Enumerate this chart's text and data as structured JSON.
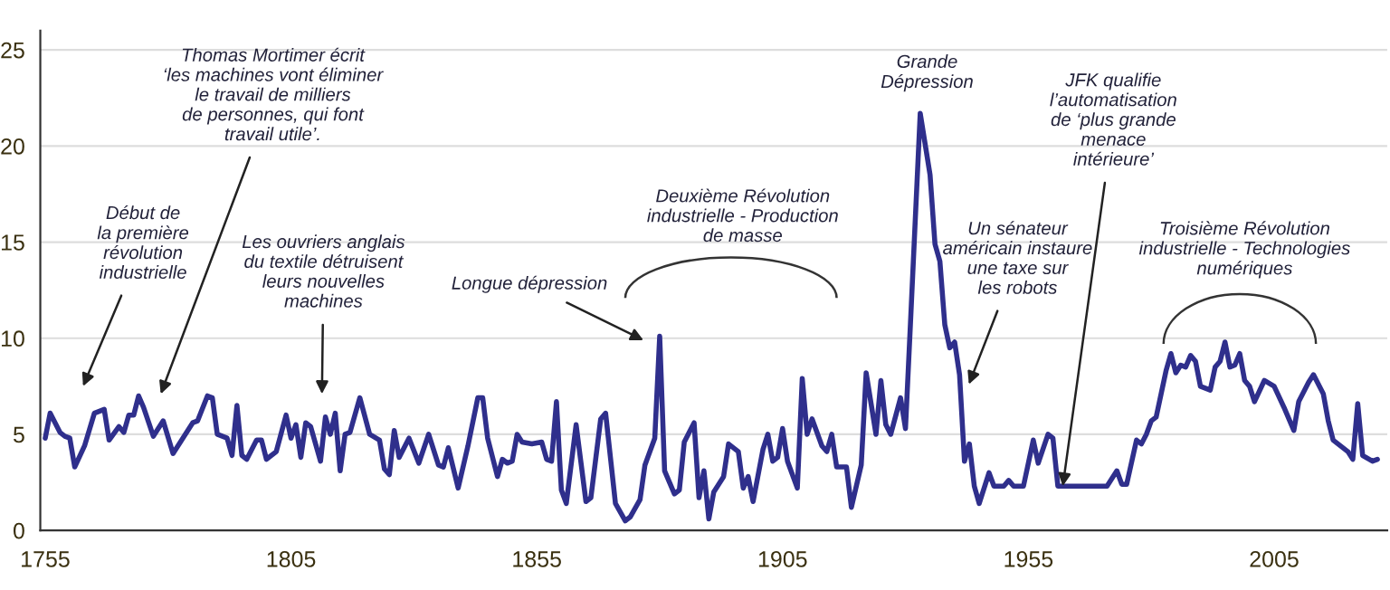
{
  "chart_data": {
    "type": "line",
    "x": [
      1755,
      1756,
      1758,
      1759,
      1760,
      1761,
      1763,
      1765,
      1767,
      1768,
      1770,
      1771,
      1772,
      1773,
      1774,
      1775,
      1777,
      1779,
      1781,
      1783,
      1785,
      1786,
      1788,
      1789,
      1790,
      1792,
      1793,
      1794,
      1795,
      1796,
      1798,
      1799,
      1800,
      1802,
      1804,
      1805,
      1806,
      1807,
      1808,
      1809,
      1811,
      1812,
      1813,
      1814,
      1815,
      1816,
      1817,
      1819,
      1821,
      1823,
      1824,
      1825,
      1826,
      1827,
      1829,
      1831,
      1833,
      1835,
      1836,
      1837,
      1839,
      1841,
      1843,
      1844,
      1845,
      1847,
      1848,
      1849,
      1850,
      1851,
      1852,
      1854,
      1856,
      1857,
      1858,
      1859,
      1860,
      1861,
      1863,
      1865,
      1866,
      1868,
      1869,
      1871,
      1873,
      1874,
      1876,
      1877,
      1879,
      1880,
      1881,
      1883,
      1884,
      1885,
      1887,
      1888,
      1889,
      1890,
      1891,
      1893,
      1894,
      1896,
      1897,
      1898,
      1899,
      1901,
      1902,
      1903,
      1904,
      1905,
      1906,
      1908,
      1909,
      1910,
      1911,
      1913,
      1914,
      1915,
      1916,
      1918,
      1919,
      1921,
      1922,
      1924,
      1925,
      1926,
      1927,
      1929,
      1930,
      1931,
      1933,
      1935,
      1936,
      1937,
      1938,
      1939,
      1940,
      1941,
      1942,
      1943,
      1944,
      1945,
      1947,
      1948,
      1950,
      1951,
      1952,
      1954,
      1956,
      1957,
      1959,
      1960,
      1961,
      1971,
      1973,
      1974,
      1975,
      1977,
      1978,
      1979,
      1980,
      1981,
      1983,
      1984,
      1985,
      1986,
      1987,
      1988,
      1989,
      1990,
      1992,
      1993,
      1994,
      1995,
      1996,
      1997,
      1998,
      1999,
      2000,
      2001,
      2003,
      2005,
      2007,
      2009,
      2010,
      2012,
      2013,
      2015,
      2016,
      2017,
      2020,
      2021,
      2022,
      2023,
      2025,
      2026
    ],
    "series": [
      {
        "color": "#2f2f8c",
        "values": [
          4.8,
          6.1,
          5.1,
          4.9,
          4.8,
          3.3,
          4.4,
          6.1,
          6.3,
          4.7,
          5.4,
          5.1,
          6.0,
          6.0,
          7.0,
          6.4,
          4.9,
          5.7,
          4.0,
          4.8,
          5.6,
          5.7,
          7.0,
          6.9,
          5.0,
          4.8,
          3.9,
          6.5,
          3.9,
          3.7,
          4.7,
          4.7,
          3.7,
          4.1,
          6.0,
          4.8,
          5.5,
          3.8,
          5.6,
          5.4,
          3.6,
          5.9,
          5.0,
          6.1,
          3.1,
          5.0,
          5.1,
          6.9,
          5.0,
          4.7,
          3.2,
          2.9,
          5.2,
          3.8,
          4.8,
          3.5,
          5.0,
          3.4,
          3.3,
          4.3,
          2.2,
          4.4,
          6.9,
          6.9,
          4.8,
          2.8,
          3.7,
          3.5,
          3.6,
          5.0,
          4.6,
          4.5,
          4.6,
          3.7,
          3.6,
          6.7,
          2.1,
          1.4,
          5.5,
          1.5,
          1.7,
          5.8,
          6.1,
          1.4,
          0.5,
          0.7,
          1.6,
          3.4,
          4.8,
          10.1,
          3.1,
          1.9,
          2.1,
          4.6,
          5.6,
          1.7,
          3.1,
          0.6,
          2.0,
          2.8,
          4.5,
          4.1,
          2.2,
          2.8,
          1.5,
          4.2,
          5.0,
          3.6,
          3.8,
          5.3,
          3.6,
          2.2,
          7.9,
          5.0,
          5.8,
          4.4,
          4.1,
          5.0,
          3.3,
          3.3,
          1.2,
          3.4,
          8.2,
          5.0,
          7.8,
          5.5,
          5.0,
          6.9,
          5.3,
          10.7,
          21.7,
          18.5,
          14.9,
          14.0,
          10.7,
          9.5,
          9.8,
          8.1,
          3.6,
          4.5,
          2.3,
          1.4,
          3.0,
          2.3,
          2.3,
          2.6,
          2.3,
          2.3,
          4.7,
          3.5,
          5.0,
          4.8,
          2.3,
          2.3,
          3.1,
          2.4,
          2.4,
          4.7,
          4.5,
          5.0,
          5.7,
          5.9,
          8.3,
          9.2,
          8.2,
          8.6,
          8.5,
          9.1,
          8.8,
          7.5,
          7.3,
          8.5,
          8.8,
          9.8,
          8.5,
          8.6,
          9.2,
          7.8,
          7.5,
          6.7,
          7.8,
          7.5,
          6.4,
          5.2,
          6.7,
          7.7,
          8.1,
          7.1,
          5.7,
          4.7,
          4.1,
          3.7,
          6.6,
          3.9,
          3.6,
          3.7
        ]
      }
    ],
    "xlim": [
      1754,
      2028
    ],
    "ylim": [
      0,
      26
    ],
    "xticks": [
      1755,
      1805,
      1855,
      1905,
      1955,
      2005
    ],
    "yticks": [
      0,
      5,
      10,
      15,
      20,
      25
    ],
    "grid": "y",
    "marker": "none",
    "line_style": "solid",
    "annotations": [
      "Début de\nla première\nrévolution\nindustrielle",
      "Thomas Mortimer écrit\n‘les machines vont éliminer\nle travail de milliers\nde personnes, qui font\ntravail utile’.",
      "Les ouvriers anglais\ndu textile détruisent\nleurs nouvelles\nmachines",
      "Longue dépression",
      "Deuxième Révolution\nindustrielle - Production\nde masse",
      "Grande\nDépression",
      "Un sénateur\naméricain instaure\nune taxe sur\nles robots",
      {
        "text": "JFK qualifie\nl’automatisation\nde ‘plus grande\nmenace\nintérieure’",
        "x": 1962,
        "y": 2.3
      },
      "Troisième Révolution\nindustrielle - Technologies\nnumériques"
    ]
  }
}
